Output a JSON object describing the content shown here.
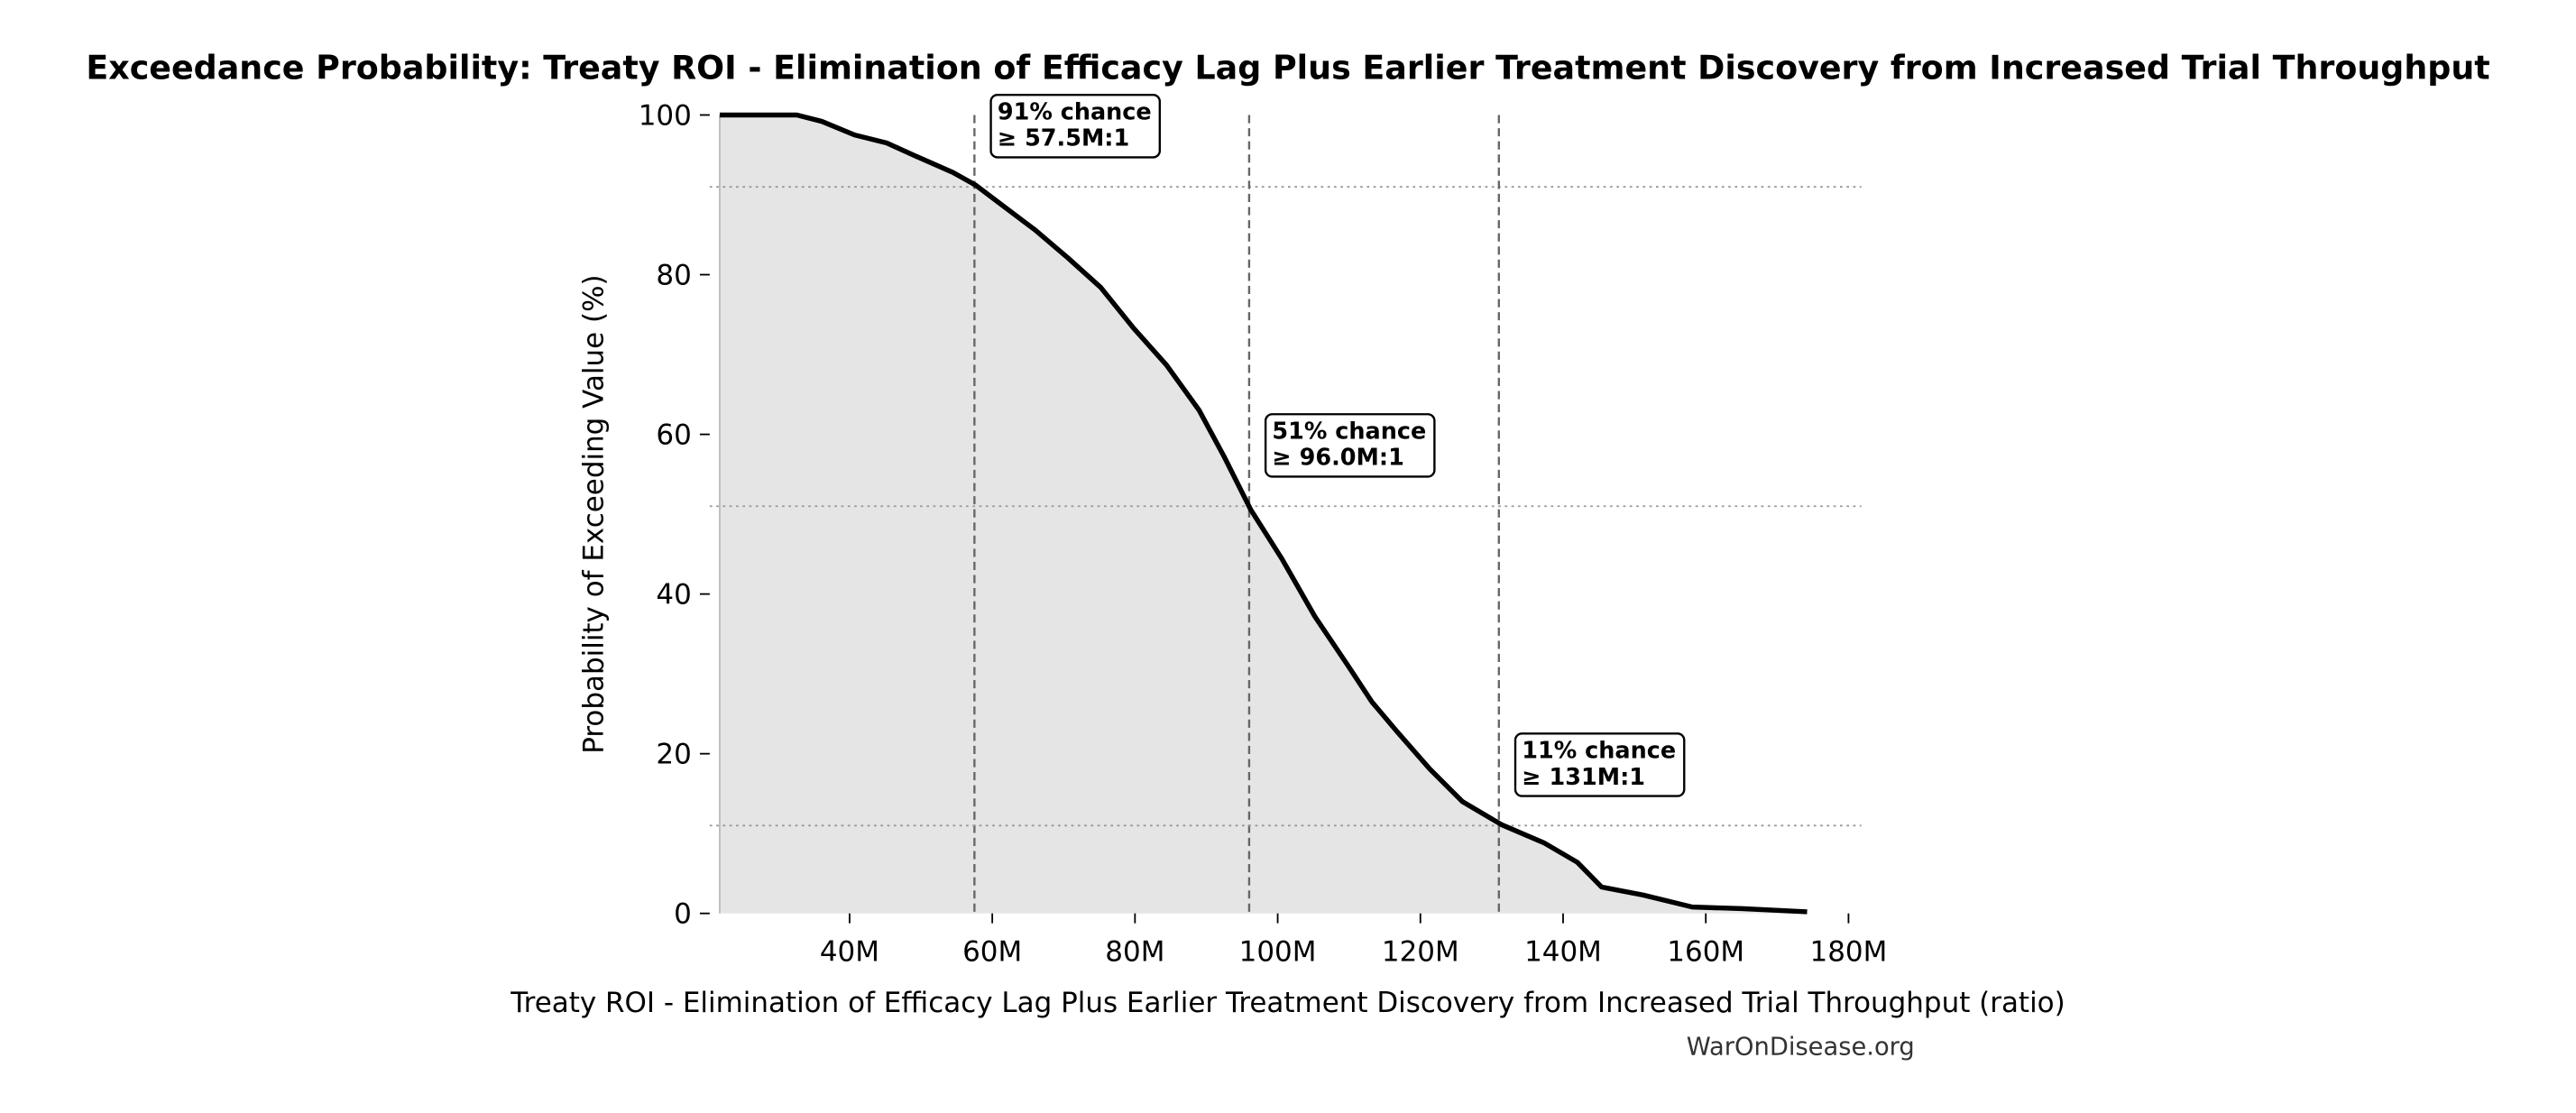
{
  "chart_data": {
    "type": "line",
    "title": "Exceedance Probability: Treaty ROI - Elimination of Efficacy Lag Plus Earlier Treatment Discovery from Increased Trial Throughput",
    "xlabel": "Treaty ROI - Elimination of Efficacy Lag Plus Earlier Treatment Discovery from Increased Trial Throughput (ratio)",
    "ylabel": "Probability of Exceeding Value (%)",
    "footer": "WarOnDisease.org",
    "color": "#000000",
    "fill_color": "#e5e5e5",
    "x": [
      21800000,
      32600000,
      36100000,
      40700000,
      45200000,
      49900000,
      54500000,
      57700000,
      61400000,
      66000000,
      70600000,
      75200000,
      79800000,
      84400000,
      89000000,
      92500000,
      96200000,
      100600000,
      105200000,
      109800000,
      113200000,
      116700000,
      121300000,
      125900000,
      131400000,
      137400000,
      142000000,
      145400000,
      151200000,
      158100000,
      165000000,
      174200000
    ],
    "values": [
      100,
      100,
      99.2,
      97.5,
      96.5,
      94.6,
      92.8,
      91.2,
      88.7,
      85.6,
      82.1,
      78.4,
      73.3,
      68.7,
      63,
      57.2,
      50.6,
      44.4,
      37.2,
      31.1,
      26.5,
      22.8,
      18.1,
      14,
      11.1,
      8.8,
      6.4,
      3.3,
      2.3,
      0.8,
      0.6,
      0.2
    ],
    "xlim": [
      20400000,
      181800000
    ],
    "ylim": [
      0,
      100
    ],
    "xticks": [
      {
        "value": 40000000,
        "label": "40M"
      },
      {
        "value": 60000000,
        "label": "60M"
      },
      {
        "value": 80000000,
        "label": "80M"
      },
      {
        "value": 100000000,
        "label": "100M"
      },
      {
        "value": 120000000,
        "label": "120M"
      },
      {
        "value": 140000000,
        "label": "140M"
      },
      {
        "value": 160000000,
        "label": "160M"
      },
      {
        "value": 180000000,
        "label": "180M"
      }
    ],
    "yticks": [
      0,
      20,
      40,
      60,
      80,
      100
    ],
    "annotations": [
      {
        "value": 57500000,
        "probability": 91,
        "lines": [
          "91% chance",
          "≥ 57.5M:1"
        ]
      },
      {
        "value": 96000000,
        "probability": 51,
        "lines": [
          "51% chance",
          "≥ 96.0M:1"
        ]
      },
      {
        "value": 131000000,
        "probability": 11,
        "lines": [
          "11% chance",
          "≥ 131M:1"
        ]
      }
    ]
  }
}
